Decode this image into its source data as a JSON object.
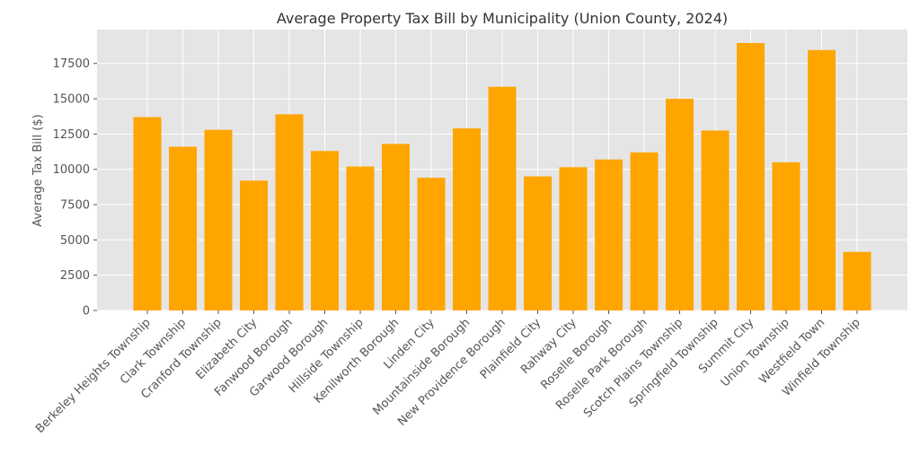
{
  "chart_data": {
    "type": "bar",
    "title": "Average Property Tax Bill by Municipality (Union County, 2024)",
    "xlabel": "",
    "ylabel": "Average Tax Bill ($)",
    "ylim": [
      0,
      19900
    ],
    "yticks": [
      0,
      2500,
      5000,
      7500,
      10000,
      12500,
      15000,
      17500
    ],
    "grid": true,
    "bar_color": "#FFA500",
    "background_color": "#E5E5E5",
    "categories": [
      "Berkeley Heights Township",
      "Clark Township",
      "Cranford Township",
      "Elizabeth City",
      "Fanwood Borough",
      "Garwood Borough",
      "Hillside Township",
      "Kenilworth Borough",
      "Linden City",
      "Mountainside Borough",
      "New Providence Borough",
      "Plainfield City",
      "Rahway City",
      "Roselle Borough",
      "Roselle Park Borough",
      "Scotch Plains Township",
      "Springfield Township",
      "Summit City",
      "Union Township",
      "Westfield Town",
      "Winfield Township"
    ],
    "values": [
      13700,
      11600,
      12800,
      9200,
      13900,
      11300,
      10200,
      11800,
      9400,
      12900,
      15850,
      9500,
      10150,
      10700,
      11200,
      15000,
      12750,
      18950,
      10500,
      18450,
      4150
    ]
  }
}
